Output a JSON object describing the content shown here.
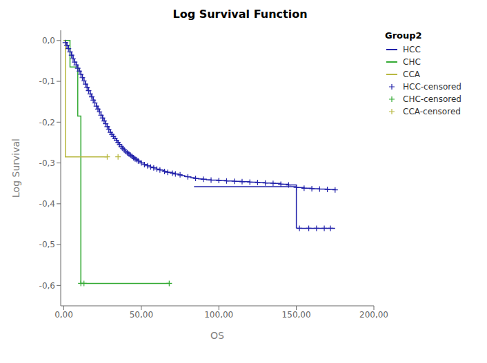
{
  "chart_data": {
    "type": "line",
    "title": "Log Survival Function",
    "xlabel": "OS",
    "ylabel": "Log Survival",
    "legend_title": "Group2",
    "legend": "right",
    "grid": false,
    "xlim": [
      -2,
      200
    ],
    "ylim": [
      -0.65,
      0.025
    ],
    "xticks": [
      {
        "value": 0,
        "label": "0,00"
      },
      {
        "value": 50,
        "label": "50,00"
      },
      {
        "value": 100,
        "label": "100,00"
      },
      {
        "value": 150,
        "label": "150,00"
      },
      {
        "value": 200,
        "label": "200,00"
      }
    ],
    "yticks": [
      {
        "value": 0.0,
        "label": "0,0"
      },
      {
        "value": -0.1,
        "label": "-0,1"
      },
      {
        "value": -0.2,
        "label": "-0,2"
      },
      {
        "value": -0.3,
        "label": "-0,3"
      },
      {
        "value": -0.4,
        "label": "-0,4"
      },
      {
        "value": -0.5,
        "label": "-0,5"
      },
      {
        "value": -0.6,
        "label": "-0,6"
      }
    ],
    "series": [
      {
        "name": "HCC",
        "color": "#2222aa",
        "type": "step",
        "x": [
          0,
          1,
          2,
          3,
          4,
          5,
          6,
          7,
          8,
          9,
          10,
          11,
          12,
          13,
          14,
          15,
          16,
          17,
          18,
          19,
          20,
          21,
          22,
          23,
          24,
          25,
          26,
          27,
          28,
          29,
          30,
          31,
          32,
          33,
          34,
          35,
          36,
          37,
          38,
          39,
          40,
          41,
          42,
          43,
          44,
          45,
          46,
          47,
          48,
          49,
          50,
          52,
          54,
          56,
          58,
          60,
          62,
          64,
          65,
          67,
          70,
          72,
          74,
          76,
          78,
          80,
          82,
          84,
          85,
          87,
          90,
          92,
          95,
          100,
          105,
          110,
          115,
          120,
          125,
          130,
          135,
          140,
          145,
          150,
          155,
          160,
          165,
          170,
          175
        ],
        "values": [
          0,
          -0.005,
          -0.012,
          -0.02,
          -0.028,
          -0.036,
          -0.045,
          -0.053,
          -0.06,
          -0.068,
          -0.075,
          -0.083,
          -0.091,
          -0.099,
          -0.107,
          -0.115,
          -0.123,
          -0.131,
          -0.138,
          -0.146,
          -0.153,
          -0.161,
          -0.168,
          -0.175,
          -0.183,
          -0.19,
          -0.197,
          -0.204,
          -0.211,
          -0.218,
          -0.225,
          -0.23,
          -0.235,
          -0.24,
          -0.245,
          -0.25,
          -0.255,
          -0.26,
          -0.264,
          -0.268,
          -0.272,
          -0.275,
          -0.278,
          -0.281,
          -0.284,
          -0.287,
          -0.29,
          -0.292,
          -0.295,
          -0.297,
          -0.3,
          -0.304,
          -0.307,
          -0.31,
          -0.312,
          -0.315,
          -0.317,
          -0.319,
          -0.321,
          -0.323,
          -0.325,
          -0.327,
          -0.329,
          -0.331,
          -0.333,
          -0.334,
          -0.336,
          -0.337,
          -0.338,
          -0.339,
          -0.34,
          -0.341,
          -0.342,
          -0.343,
          -0.344,
          -0.345,
          -0.346,
          -0.347,
          -0.348,
          -0.349,
          -0.35,
          -0.352,
          -0.354,
          -0.36,
          -0.362,
          -0.363,
          -0.364,
          -0.365,
          -0.366
        ]
      },
      {
        "name": "HCC",
        "color": "#2222aa",
        "type": "line",
        "x": [
          84,
          150
        ],
        "values": [
          -0.358,
          -0.358
        ]
      },
      {
        "name": "HCC",
        "color": "#2222aa",
        "type": "line",
        "x": [
          150,
          150
        ],
        "values": [
          -0.358,
          -0.46
        ]
      },
      {
        "name": "HCC",
        "color": "#2222aa",
        "type": "line",
        "x": [
          150,
          175
        ],
        "values": [
          -0.46,
          -0.46
        ]
      },
      {
        "name": "HCC-censored",
        "color": "#2222aa",
        "type": "scatter",
        "marker": "plus",
        "x": [
          1,
          2,
          3,
          4,
          5,
          6,
          7,
          8,
          9,
          10,
          11,
          12,
          13,
          14,
          15,
          16,
          17,
          18,
          19,
          20,
          21,
          22,
          23,
          24,
          25,
          26,
          27,
          28,
          29,
          30,
          31,
          32,
          33,
          34,
          35,
          36,
          37,
          38,
          39,
          40,
          41,
          42,
          43,
          44,
          45,
          46,
          47,
          48,
          50,
          52,
          54,
          56,
          58,
          60,
          62,
          65,
          67,
          70,
          72,
          75,
          80,
          85,
          90,
          95,
          100,
          105,
          110,
          115,
          120,
          125,
          130,
          135,
          140,
          145,
          150,
          155,
          160,
          165,
          170,
          175
        ],
        "values": [
          -0.005,
          -0.012,
          -0.02,
          -0.028,
          -0.036,
          -0.045,
          -0.053,
          -0.06,
          -0.068,
          -0.075,
          -0.083,
          -0.091,
          -0.099,
          -0.107,
          -0.115,
          -0.123,
          -0.131,
          -0.138,
          -0.146,
          -0.153,
          -0.161,
          -0.168,
          -0.175,
          -0.183,
          -0.19,
          -0.197,
          -0.204,
          -0.211,
          -0.218,
          -0.225,
          -0.23,
          -0.235,
          -0.24,
          -0.245,
          -0.25,
          -0.255,
          -0.26,
          -0.264,
          -0.268,
          -0.272,
          -0.275,
          -0.278,
          -0.281,
          -0.284,
          -0.287,
          -0.29,
          -0.292,
          -0.295,
          -0.3,
          -0.304,
          -0.307,
          -0.31,
          -0.312,
          -0.315,
          -0.317,
          -0.321,
          -0.323,
          -0.325,
          -0.327,
          -0.329,
          -0.334,
          -0.338,
          -0.34,
          -0.342,
          -0.343,
          -0.344,
          -0.345,
          -0.346,
          -0.347,
          -0.348,
          -0.349,
          -0.35,
          -0.352,
          -0.354,
          -0.36,
          -0.362,
          -0.363,
          -0.364,
          -0.365,
          -0.366
        ]
      },
      {
        "name": "HCC-censored",
        "color": "#2222aa",
        "type": "scatter",
        "marker": "plus",
        "x": [
          152,
          158,
          163,
          168,
          172
        ],
        "values": [
          -0.46,
          -0.46,
          -0.46,
          -0.46,
          -0.46
        ]
      },
      {
        "name": "CHC",
        "color": "#33aa33",
        "type": "line",
        "x": [
          0,
          4,
          4,
          9,
          9,
          11,
          11,
          68
        ],
        "values": [
          0,
          0,
          -0.065,
          -0.065,
          -0.185,
          -0.185,
          -0.595,
          -0.595
        ]
      },
      {
        "name": "CHC-censored",
        "color": "#33aa33",
        "type": "scatter",
        "marker": "plus",
        "x": [
          11,
          13,
          68
        ],
        "values": [
          -0.595,
          -0.595,
          -0.595
        ]
      },
      {
        "name": "CCA",
        "color": "#b8b840",
        "type": "line",
        "x": [
          0,
          1,
          1,
          28,
          28
        ],
        "values": [
          0,
          0,
          -0.285,
          -0.285,
          -0.285
        ]
      },
      {
        "name": "CCA-censored",
        "color": "#b8b840",
        "type": "scatter",
        "marker": "plus",
        "x": [
          28,
          35
        ],
        "values": [
          -0.285,
          -0.285
        ]
      }
    ]
  }
}
